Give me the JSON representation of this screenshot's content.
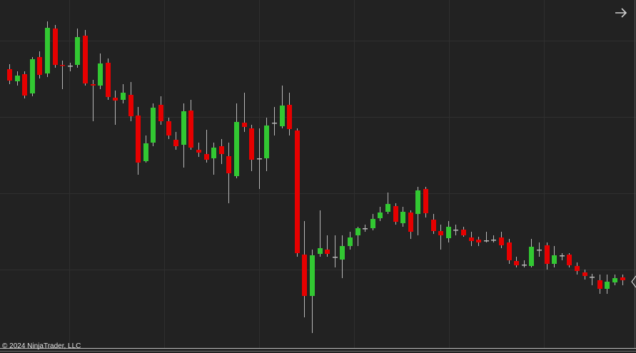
{
  "chart_data": {
    "type": "candlestick",
    "up_color": "#32c832",
    "down_color": "#e60000",
    "ylim": [
      0,
      495
    ],
    "open": [
      398,
      381,
      391,
      364,
      415,
      392,
      455,
      404,
      403,
      404,
      445,
      377,
      375,
      407,
      358,
      355,
      362,
      333,
      269,
      295,
      348,
      325,
      299,
      292,
      340,
      285,
      279,
      273,
      290,
      276,
      248,
      323,
      315,
      273,
      273,
      323,
      318,
      348,
      312,
      138,
      80,
      139,
      145,
      135,
      131,
      150,
      165,
      175,
      175,
      189,
      198,
      206,
      182,
      197,
      195,
      230,
      187,
      171,
      161,
      173,
      173,
      162,
      159,
      158,
      159,
      162,
      155,
      129,
      124,
      122,
      145,
      151,
      125,
      137,
      138,
      122,
      113,
      107,
      102,
      90,
      99,
      106
    ],
    "high": [
      405,
      395,
      395,
      415,
      423,
      465,
      460,
      410,
      407,
      455,
      453,
      383,
      420,
      413,
      368,
      377,
      380,
      345,
      305,
      350,
      360,
      330,
      310,
      350,
      355,
      295,
      313,
      295,
      300,
      295,
      350,
      365,
      320,
      315,
      330,
      345,
      375,
      365,
      315,
      185,
      145,
      200,
      165,
      165,
      165,
      170,
      177,
      180,
      195,
      205,
      225,
      210,
      205,
      200,
      233,
      233,
      195,
      180,
      185,
      180,
      177,
      170,
      163,
      170,
      165,
      170,
      160,
      135,
      130,
      160,
      155,
      155,
      150,
      140,
      140,
      127,
      117,
      111,
      110,
      110,
      110,
      110
    ],
    "low": [
      377,
      375,
      357,
      360,
      385,
      387,
      400,
      370,
      395,
      400,
      375,
      325,
      370,
      355,
      320,
      350,
      325,
      250,
      267,
      290,
      320,
      300,
      285,
      260,
      285,
      275,
      267,
      250,
      265,
      210,
      245,
      310,
      255,
      230,
      255,
      305,
      315,
      305,
      135,
      50,
      28,
      135,
      135,
      120,
      105,
      145,
      150,
      170,
      172,
      185,
      195,
      180,
      177,
      160,
      165,
      190,
      167,
      145,
      155,
      165,
      163,
      150,
      150,
      155,
      155,
      147,
      125,
      120,
      120,
      120,
      135,
      117,
      120,
      130,
      120,
      110,
      103,
      95,
      83,
      83,
      95,
      95
    ],
    "close": [
      382,
      389,
      361,
      412,
      390,
      456,
      404,
      403,
      403,
      443,
      378,
      375,
      406,
      359,
      354,
      365,
      332,
      267,
      294,
      344,
      325,
      305,
      290,
      339,
      288,
      281,
      271,
      288,
      279,
      252,
      324,
      317,
      271,
      273,
      319,
      323,
      347,
      314,
      140,
      80,
      137,
      147,
      139,
      135,
      150,
      162,
      175,
      175,
      188,
      197,
      209,
      184,
      198,
      170,
      228,
      196,
      171,
      165,
      177,
      173,
      165,
      157,
      155,
      158,
      159,
      151,
      130,
      123,
      124,
      149,
      145,
      125,
      137,
      137,
      123,
      115,
      108,
      107,
      90,
      100,
      105,
      102
    ]
  },
  "footer": "© 2024 NinjaTrader, LLC"
}
